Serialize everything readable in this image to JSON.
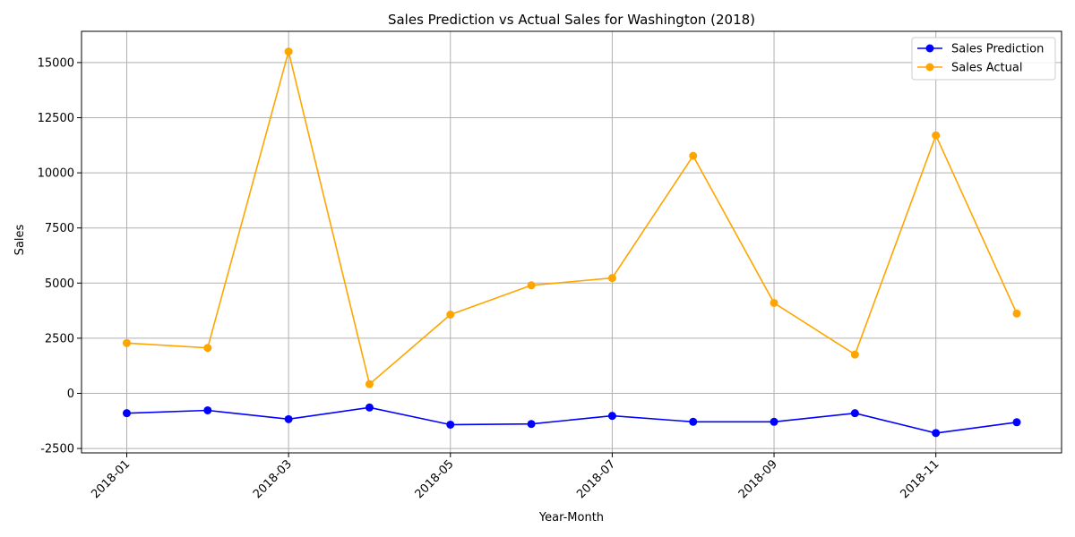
{
  "chart_data": {
    "type": "line",
    "title": "Sales Prediction vs Actual Sales for Washington (2018)",
    "xlabel": "Year-Month",
    "ylabel": "Sales",
    "x": [
      "2018-01",
      "2018-02",
      "2018-03",
      "2018-04",
      "2018-05",
      "2018-06",
      "2018-07",
      "2018-08",
      "2018-09",
      "2018-10",
      "2018-11",
      "2018-12"
    ],
    "x_ticks": [
      "2018-01",
      "2018-03",
      "2018-05",
      "2018-07",
      "2018-09",
      "2018-11"
    ],
    "y_ticks": [
      -2500,
      0,
      2500,
      5000,
      7500,
      10000,
      12500,
      15000
    ],
    "ylim": [
      -2500,
      16000
    ],
    "grid": true,
    "legend_position": "top-right",
    "series": [
      {
        "name": "Sales Prediction",
        "color": "#0000ff",
        "values": [
          -900,
          -770,
          -1170,
          -640,
          -1420,
          -1390,
          -1020,
          -1290,
          -1290,
          -900,
          -1800,
          -1310
        ]
      },
      {
        "name": "Sales Actual",
        "color": "#ffa500",
        "values": [
          2280,
          2060,
          15500,
          420,
          3570,
          4900,
          5230,
          10770,
          4100,
          1760,
          11700,
          3620
        ]
      }
    ]
  }
}
